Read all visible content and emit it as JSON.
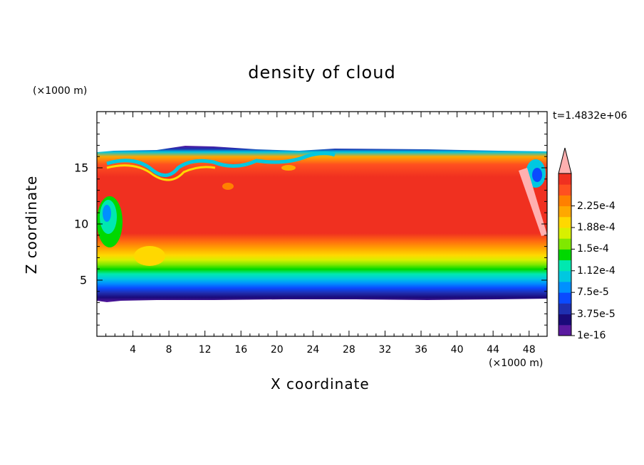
{
  "chart_data": {
    "type": "heatmap",
    "title": "density of cloud",
    "xlabel": "X coordinate",
    "ylabel": "Z coordinate",
    "x_unit": "(×1000 m)",
    "y_unit": "(×1000 m)",
    "time_label": "t=1.4832e+06",
    "xlim": [
      0,
      50
    ],
    "ylim": [
      0,
      20
    ],
    "x_ticks": [
      "4",
      "8",
      "12",
      "16",
      "20",
      "24",
      "28",
      "32",
      "36",
      "40",
      "44",
      "48"
    ],
    "y_ticks": [
      "5",
      "10",
      "15"
    ],
    "colorbar": {
      "tick_labels": [
        "1e-16",
        "3.75e-5",
        "7.5e-5",
        "1.12e-4",
        "1.5e-4",
        "1.88e-4",
        "2.25e-4"
      ],
      "extend": "max",
      "colors": [
        "#5a1aa0",
        "#1a0a7a",
        "#1f2fb0",
        "#0a4aff",
        "#0090ff",
        "#00c8e0",
        "#00e8b0",
        "#00d800",
        "#80e800",
        "#d8f000",
        "#ffd800",
        "#ffa800",
        "#ff8000",
        "#ff5020",
        "#f03020",
        "#ffb0b0"
      ]
    },
    "cloud_layer": {
      "z_base": 3.5,
      "z_top": 16.3,
      "core_z_range": [
        8.5,
        14
      ],
      "core_density": 0.00023
    }
  }
}
